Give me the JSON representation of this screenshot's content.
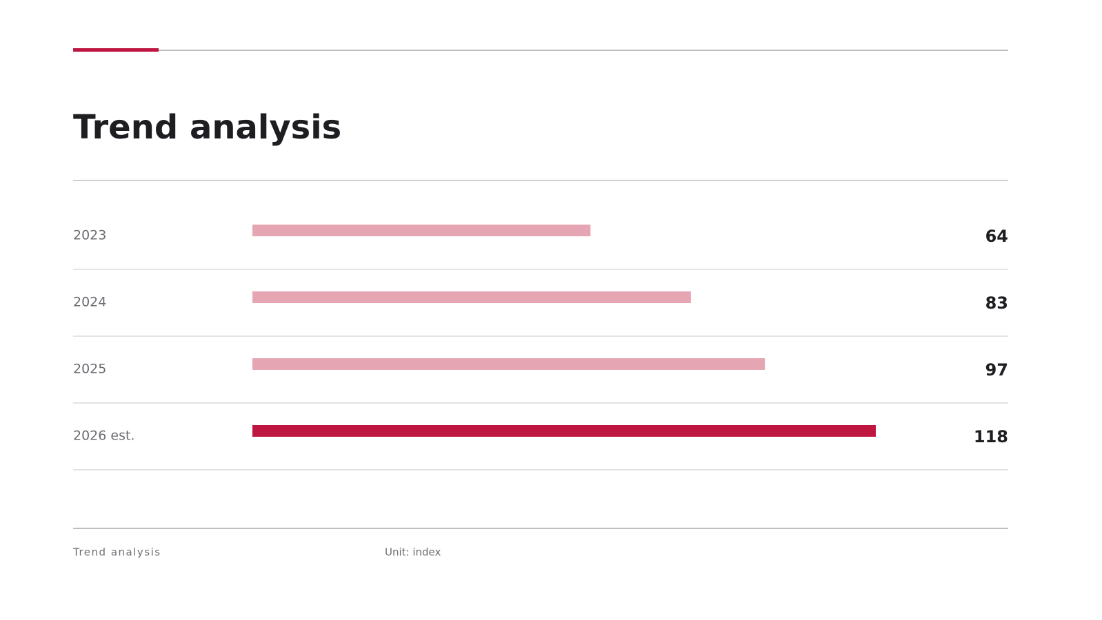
{
  "chart_data": {
    "type": "bar",
    "orientation": "horizontal",
    "title": "Trend analysis",
    "categories": [
      "2023",
      "2024",
      "2025",
      "2026 est."
    ],
    "values": [
      64,
      83,
      97,
      118
    ],
    "colors": [
      "#e6a5b3",
      "#e6a5b3",
      "#e6a5b3",
      "#be1641"
    ],
    "footer_label": "Trend analysis",
    "unit_note": "Unit: index"
  }
}
